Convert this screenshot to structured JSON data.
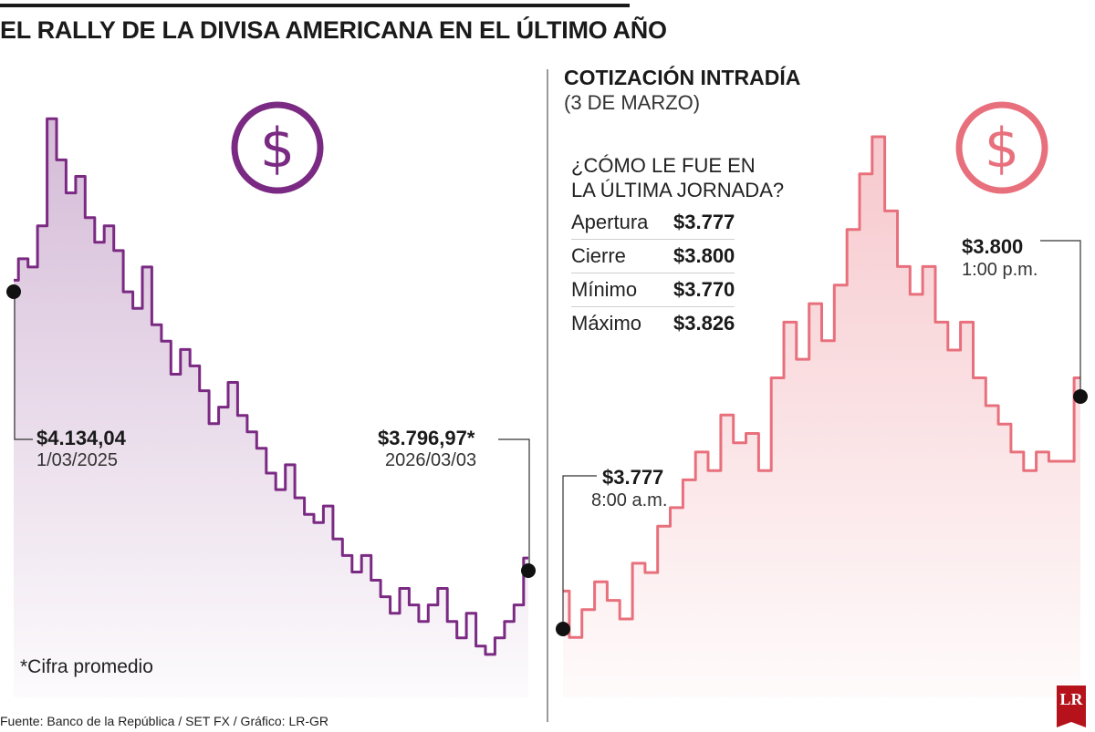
{
  "title": "EL RALLY DE LA DIVISA AMERICANA EN EL ÚLTIMO AÑO",
  "left_chart": {
    "icon": "dollar-circle-icon",
    "color": "#7b2a83",
    "start": {
      "value": "$4.134,04",
      "date": "1/03/2025"
    },
    "end": {
      "value": "$3.796,97*",
      "date": "2026/03/03"
    },
    "note": "*Cifra promedio"
  },
  "right_panel": {
    "title": "COTIZACIÓN INTRADÍA",
    "date": "(3 DE MARZO)",
    "question_line1": "¿CÓMO LE FUE EN",
    "question_line2": "LA ÚLTIMA JORNADA?",
    "stats": [
      {
        "label": "Apertura",
        "value": "$3.777"
      },
      {
        "label": "Cierre",
        "value": "$3.800"
      },
      {
        "label": "Mínimo",
        "value": "$3.770"
      },
      {
        "label": "Máximo",
        "value": "$3.826"
      }
    ],
    "icon": "dollar-circle-icon",
    "color": "#e8707c",
    "open_label": {
      "value": "$3.777",
      "time": "8:00 a.m."
    },
    "close_label": {
      "value": "$3.800",
      "time": "1:00 p.m."
    }
  },
  "source": "Fuente: Banco de la República / SET FX / Gráfico: LR-GR",
  "logo_text": "LR",
  "chart_data": [
    {
      "type": "area",
      "series": [
        {
          "values": [
            4134,
            4160,
            4150,
            4200,
            4330,
            4280,
            4240,
            4260,
            4210,
            4180,
            4200,
            4170,
            4120,
            4100,
            4150,
            4080,
            4060,
            4020,
            4050,
            4030,
            4000,
            3960,
            3980,
            4010,
            3970,
            3950,
            3930,
            3900,
            3880,
            3910,
            3870,
            3850,
            3840,
            3860,
            3820,
            3800,
            3780,
            3800,
            3770,
            3750,
            3730,
            3760,
            3740,
            3720,
            3740,
            3760,
            3720,
            3700,
            3730,
            3690,
            3680,
            3700,
            3720,
            3740,
            3796.97
          ]
        }
      ],
      "start_date": "1/03/2025",
      "end_date": "2026/03/03"
    },
    {
      "type": "area",
      "series": [
        {
          "values": [
            3777,
            3772,
            3775,
            3778,
            3776,
            3774,
            3780,
            3779,
            3784,
            3786,
            3789,
            3792,
            3790,
            3796,
            3793,
            3794,
            3790,
            3800,
            3806,
            3802,
            3808,
            3804,
            3810,
            3816,
            3822,
            3826,
            3818,
            3812,
            3809,
            3812,
            3806,
            3803,
            3806,
            3800,
            3797,
            3795,
            3792,
            3790,
            3792,
            3791,
            3791,
            3800
          ]
        }
      ],
      "start_time": "8:00 a.m.",
      "end_time": "1:00 p.m.",
      "ylim": [
        3770,
        3826
      ]
    }
  ]
}
